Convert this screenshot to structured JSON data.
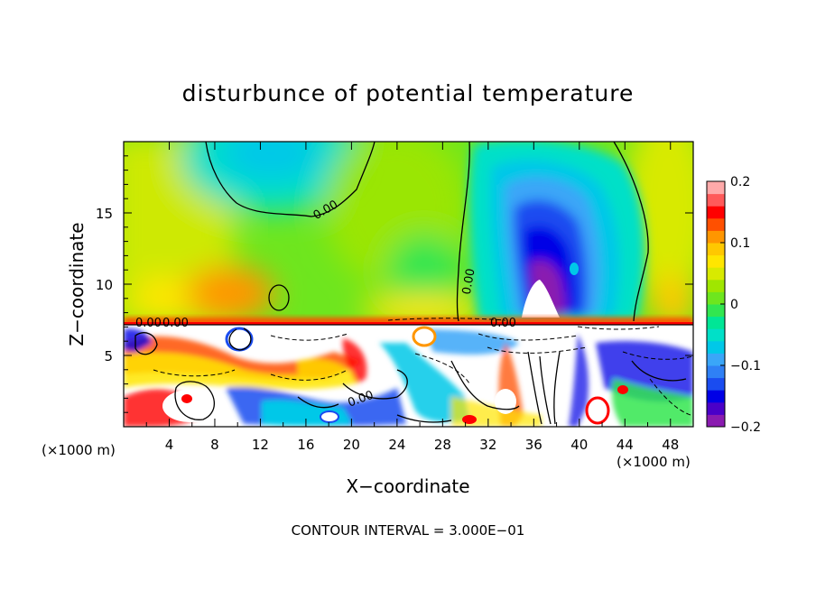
{
  "chart_data": {
    "type": "heatmap",
    "title": "disturbunce of potential temperature",
    "xlabel": "X−coordinate",
    "ylabel": "Z−coordinate",
    "x_unit": "(×1000 m)",
    "z_unit": "(×1000 m)",
    "xlim": [
      0,
      50
    ],
    "ylim": [
      0,
      20
    ],
    "x_ticks": [
      "4",
      "8",
      "12",
      "16",
      "20",
      "24",
      "28",
      "32",
      "36",
      "40",
      "44",
      "48"
    ],
    "y_ticks": [
      "5",
      "10",
      "15"
    ],
    "colorbar": {
      "range": [
        -0.2,
        0.2
      ],
      "tick_labels": [
        "0.2",
        "0.1",
        "0",
        "−0.1",
        "−0.2"
      ],
      "colors": [
        "#8a1bb0",
        "#4a00c8",
        "#0000e6",
        "#1a4cf0",
        "#2f80f5",
        "#3aa6f8",
        "#00c8e8",
        "#00e0c8",
        "#00e696",
        "#32e650",
        "#6ee61e",
        "#a0e600",
        "#d8ea00",
        "#ffe600",
        "#ffc800",
        "#ff9600",
        "#ff5000",
        "#ff0000",
        "#ff5a5a",
        "#ffaaaa"
      ]
    },
    "contour_labels": [
      "0.00",
      "0.00",
      "0.00",
      "0.00",
      "0.00",
      "0.00"
    ],
    "contour_interval_text": "CONTOUR INTERVAL = 3.000E−01"
  }
}
